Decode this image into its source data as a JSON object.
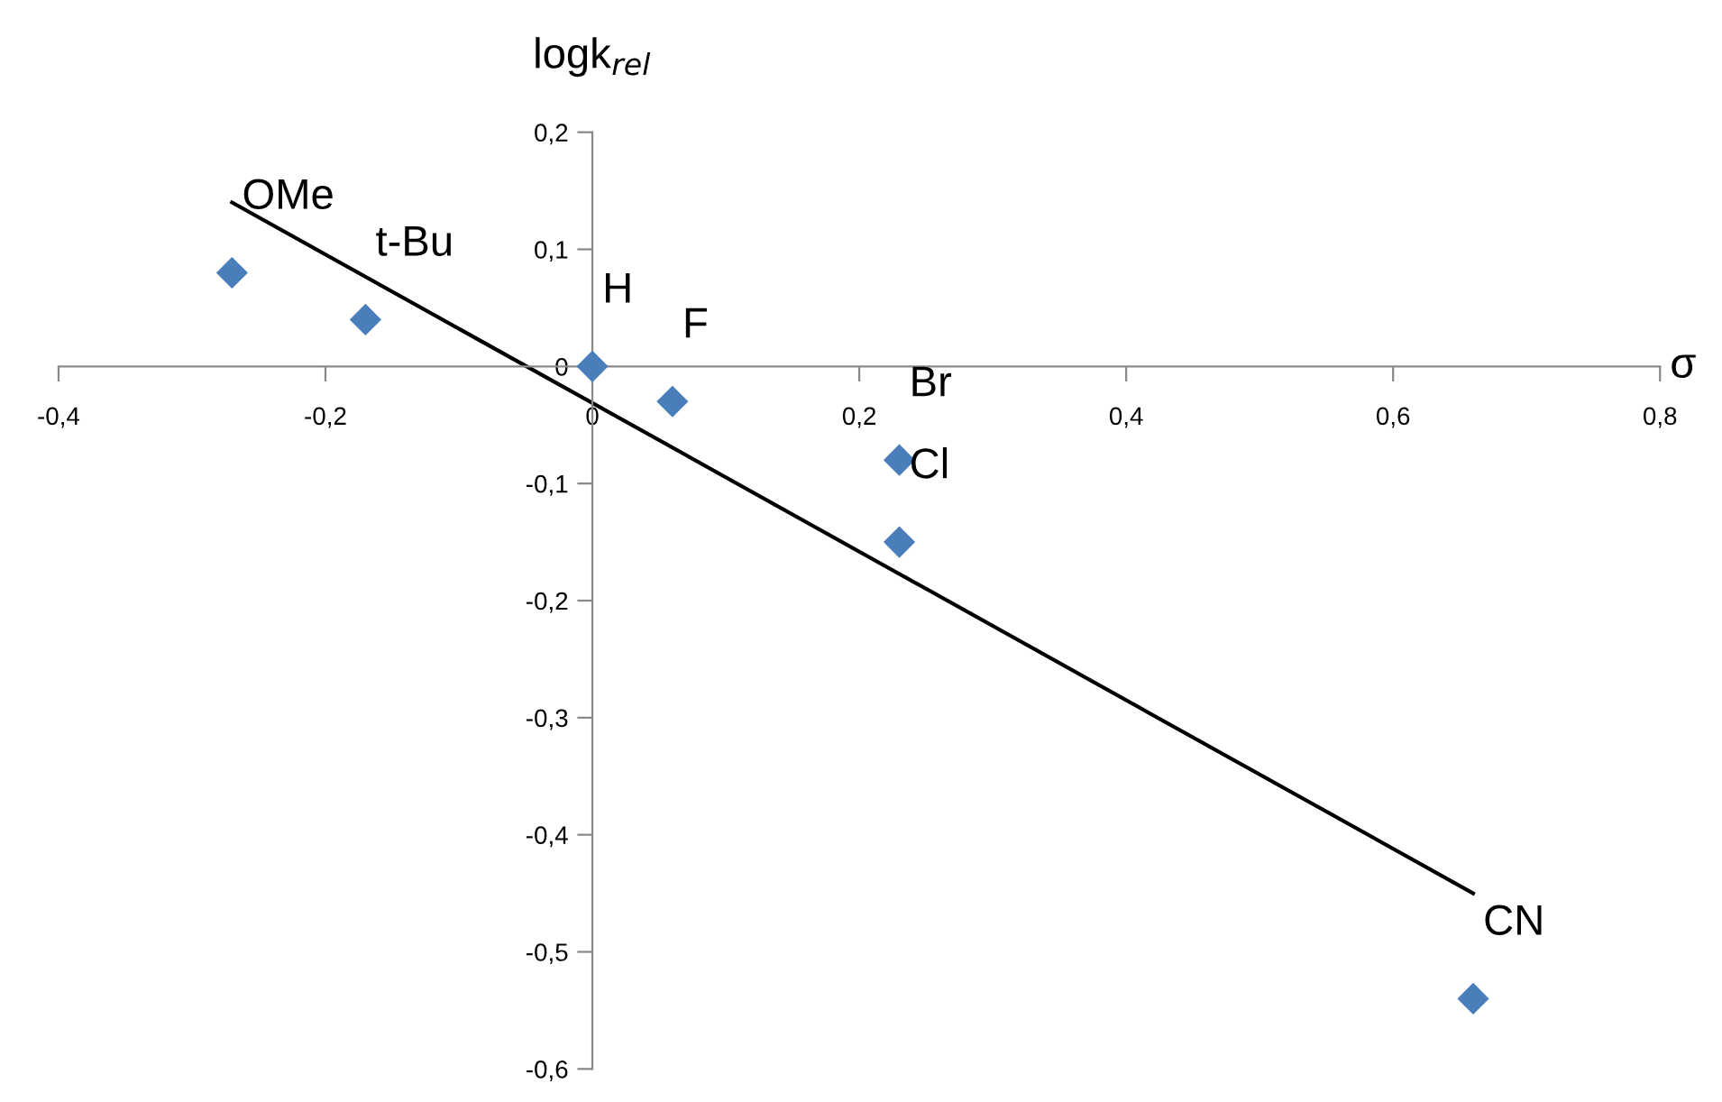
{
  "chart_data": {
    "type": "scatter",
    "xlabel": "σ",
    "ylabel": "logk$_{rel}$",
    "x": [
      -0.27,
      -0.17,
      0,
      0.06,
      0.23,
      0.23,
      0.66
    ],
    "series": [
      {
        "color": "#4a7ebb",
        "values": [
          0.08,
          0.04,
          0,
          -0.03,
          -0.08,
          -0.15,
          -0.54
        ],
        "marker": "diamond"
      },
      {
        "type": "line",
        "color": "#000000",
        "x": [
          -0.27,
          0.66
        ],
        "values": [
          0.14,
          -0.45
        ],
        "marker": "none",
        "line_style": "solid"
      }
    ],
    "annotations": [
      {
        "text": "OMe",
        "x": -0.27,
        "y": 0.08
      },
      {
        "text": "t-Bu",
        "x": -0.17,
        "y": 0.04
      },
      {
        "text": "H",
        "x": 0,
        "y": 0
      },
      {
        "text": "F",
        "x": 0.06,
        "y": -0.03
      },
      {
        "text": "Br",
        "x": 0.23,
        "y": -0.08
      },
      {
        "text": "Cl",
        "x": 0.23,
        "y": -0.15
      },
      {
        "text": "CN",
        "x": 0.66,
        "y": -0.54
      }
    ],
    "xlim": [
      -0.4,
      0.8
    ],
    "xticks": [
      {
        "value": -0.4,
        "label": "-0,4"
      },
      {
        "value": -0.2,
        "label": "-0,2"
      },
      0,
      {
        "value": 0.2,
        "label": "0,2"
      },
      {
        "value": 0.4,
        "label": "0,4"
      },
      {
        "value": 0.6,
        "label": "0,6"
      },
      {
        "value": 0.8,
        "label": "0,8"
      }
    ],
    "ylim": [
      -0.6,
      0.2
    ],
    "yticks": [
      {
        "value": -0.6,
        "label": "-0,6"
      },
      {
        "value": -0.5,
        "label": "-0,5"
      },
      {
        "value": -0.4,
        "label": "-0,4"
      },
      {
        "value": -0.3,
        "label": "-0,3"
      },
      {
        "value": -0.2,
        "label": "-0,2"
      },
      {
        "value": -0.1,
        "label": "-0,1"
      },
      0,
      {
        "value": 0.1,
        "label": "0,1"
      },
      {
        "value": 0.2,
        "label": "0,2"
      }
    ],
    "grid": false,
    "legend": false
  }
}
